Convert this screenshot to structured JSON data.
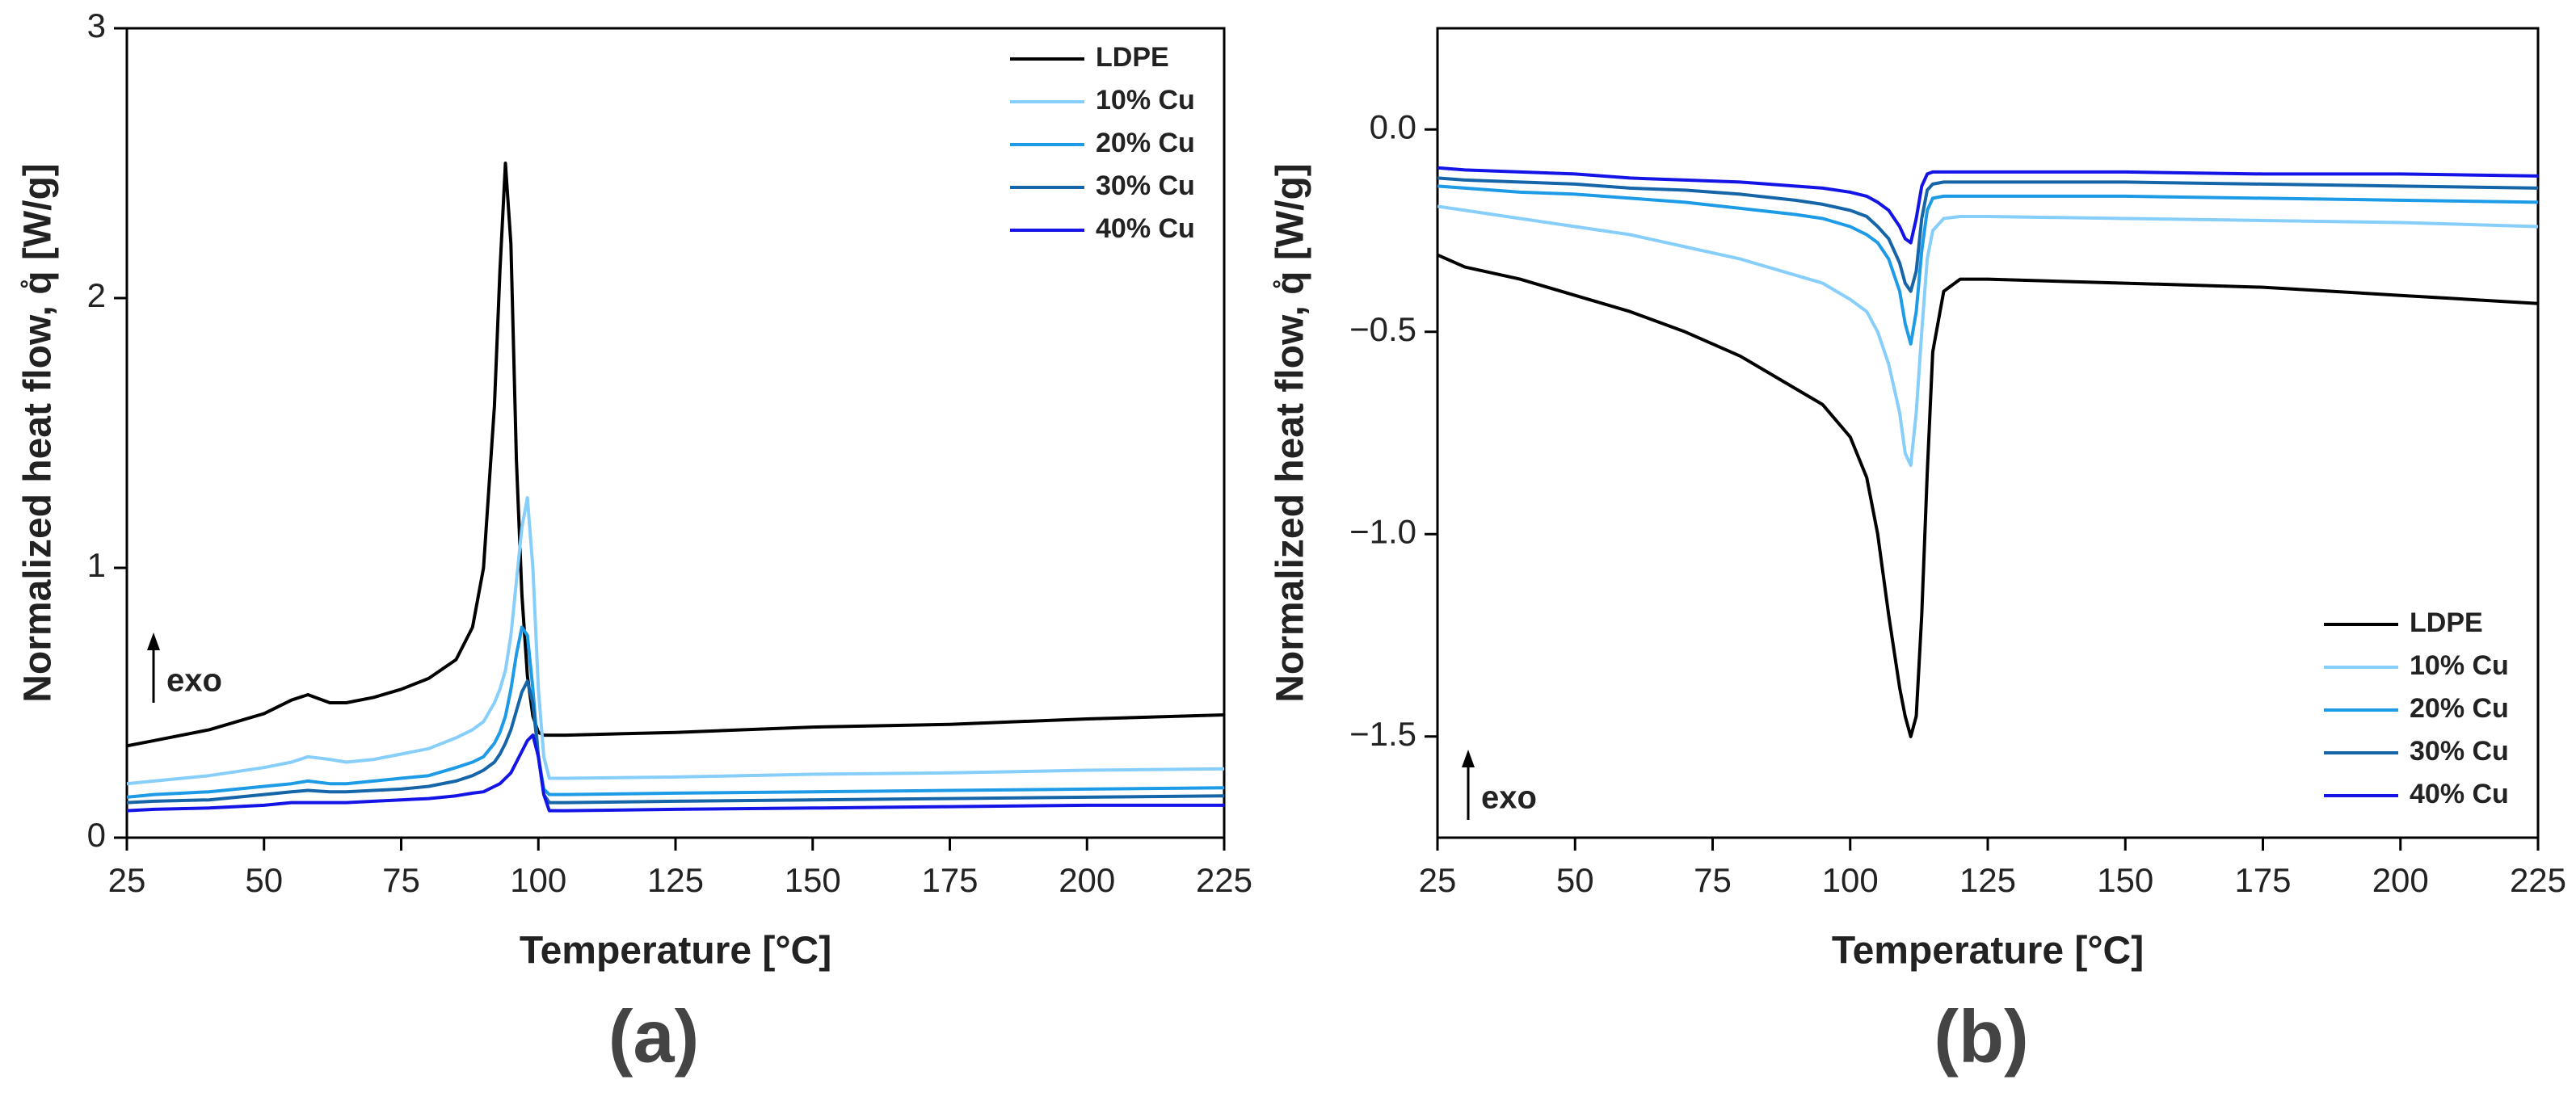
{
  "chart_data": [
    {
      "type": "line",
      "panel_label": "(a)",
      "x_label": "Temperature [°C]",
      "y_label": "Normalized heat flow, q̊ [W/g]",
      "annotation": "exo",
      "legend": "upper right",
      "xlim": [
        25,
        225
      ],
      "ylim": [
        0,
        3
      ],
      "xticks": [
        25,
        50,
        75,
        100,
        125,
        150,
        175,
        200,
        225
      ],
      "yticks": [
        0,
        1,
        2,
        3
      ],
      "x": [
        25,
        30,
        40,
        50,
        55,
        58,
        62,
        65,
        70,
        75,
        80,
        85,
        88,
        90,
        92,
        93,
        94,
        95,
        96,
        97,
        98,
        99,
        100,
        101,
        102,
        105,
        125,
        150,
        175,
        200,
        225
      ],
      "series": [
        {
          "name": "LDPE",
          "color": "#000000",
          "values": [
            0.34,
            0.36,
            0.4,
            0.46,
            0.51,
            0.53,
            0.5,
            0.5,
            0.52,
            0.55,
            0.59,
            0.66,
            0.78,
            1.0,
            1.6,
            2.1,
            2.5,
            2.2,
            1.4,
            0.9,
            0.6,
            0.45,
            0.39,
            0.38,
            0.38,
            0.38,
            0.39,
            0.41,
            0.42,
            0.44,
            0.455
          ]
        },
        {
          "name": "10% Cu",
          "color": "#87cefa",
          "values": [
            0.2,
            0.21,
            0.23,
            0.26,
            0.28,
            0.3,
            0.29,
            0.28,
            0.29,
            0.31,
            0.33,
            0.37,
            0.4,
            0.43,
            0.5,
            0.55,
            0.62,
            0.75,
            0.95,
            1.15,
            1.26,
            1.0,
            0.55,
            0.3,
            0.22,
            0.22,
            0.225,
            0.235,
            0.24,
            0.25,
            0.255
          ]
        },
        {
          "name": "20% Cu",
          "color": "#1e9be6",
          "values": [
            0.15,
            0.16,
            0.17,
            0.19,
            0.2,
            0.21,
            0.2,
            0.2,
            0.21,
            0.22,
            0.23,
            0.26,
            0.28,
            0.3,
            0.35,
            0.39,
            0.45,
            0.55,
            0.68,
            0.78,
            0.75,
            0.55,
            0.3,
            0.18,
            0.16,
            0.16,
            0.165,
            0.17,
            0.175,
            0.18,
            0.185
          ]
        },
        {
          "name": "30% Cu",
          "color": "#1565a8",
          "values": [
            0.13,
            0.135,
            0.14,
            0.16,
            0.17,
            0.175,
            0.17,
            0.17,
            0.175,
            0.18,
            0.19,
            0.21,
            0.23,
            0.25,
            0.28,
            0.31,
            0.35,
            0.4,
            0.47,
            0.54,
            0.58,
            0.5,
            0.3,
            0.16,
            0.13,
            0.13,
            0.135,
            0.14,
            0.145,
            0.15,
            0.155
          ]
        },
        {
          "name": "40% Cu",
          "color": "#1414e6",
          "values": [
            0.1,
            0.105,
            0.11,
            0.12,
            0.13,
            0.13,
            0.13,
            0.13,
            0.135,
            0.14,
            0.145,
            0.155,
            0.165,
            0.17,
            0.19,
            0.2,
            0.22,
            0.24,
            0.28,
            0.32,
            0.36,
            0.38,
            0.3,
            0.16,
            0.1,
            0.1,
            0.105,
            0.11,
            0.115,
            0.12,
            0.12
          ]
        }
      ]
    },
    {
      "type": "line",
      "panel_label": "(b)",
      "x_label": "Temperature [°C]",
      "y_label": "Normalized heat flow, q̊ [W/g]",
      "annotation": "exo",
      "legend": "lower right",
      "xlim": [
        25,
        225
      ],
      "ylim": [
        -1.75,
        0.25
      ],
      "xticks": [
        25,
        50,
        75,
        100,
        125,
        150,
        175,
        200,
        225
      ],
      "yticks": [
        {
          "value": 0,
          "label": "0.0"
        },
        {
          "value": -0.5,
          "label": "−0.5"
        },
        {
          "value": -1,
          "label": "−1.0"
        },
        {
          "value": -1.5,
          "label": "−1.5"
        }
      ],
      "x": [
        25,
        30,
        40,
        50,
        60,
        70,
        80,
        90,
        95,
        100,
        103,
        105,
        107,
        109,
        110,
        111,
        112,
        113,
        114,
        115,
        117,
        120,
        125,
        150,
        175,
        200,
        225
      ],
      "series": [
        {
          "name": "LDPE",
          "color": "#000000",
          "values": [
            -0.31,
            -0.34,
            -0.37,
            -0.41,
            -0.45,
            -0.5,
            -0.56,
            -0.64,
            -0.68,
            -0.76,
            -0.86,
            -1.0,
            -1.2,
            -1.38,
            -1.45,
            -1.5,
            -1.45,
            -1.2,
            -0.85,
            -0.55,
            -0.4,
            -0.37,
            -0.37,
            -0.38,
            -0.39,
            -0.41,
            -0.43
          ]
        },
        {
          "name": "10% Cu",
          "color": "#87cefa",
          "values": [
            -0.19,
            -0.2,
            -0.22,
            -0.24,
            -0.26,
            -0.29,
            -0.32,
            -0.36,
            -0.38,
            -0.42,
            -0.45,
            -0.5,
            -0.58,
            -0.7,
            -0.8,
            -0.83,
            -0.7,
            -0.5,
            -0.32,
            -0.25,
            -0.22,
            -0.215,
            -0.215,
            -0.22,
            -0.225,
            -0.23,
            -0.24
          ]
        },
        {
          "name": "20% Cu",
          "color": "#1e9be6",
          "values": [
            -0.14,
            -0.145,
            -0.155,
            -0.16,
            -0.17,
            -0.18,
            -0.195,
            -0.21,
            -0.22,
            -0.24,
            -0.26,
            -0.28,
            -0.32,
            -0.4,
            -0.48,
            -0.53,
            -0.45,
            -0.3,
            -0.2,
            -0.17,
            -0.165,
            -0.165,
            -0.165,
            -0.165,
            -0.17,
            -0.175,
            -0.18
          ]
        },
        {
          "name": "30% Cu",
          "color": "#1565a8",
          "values": [
            -0.12,
            -0.125,
            -0.13,
            -0.135,
            -0.145,
            -0.15,
            -0.16,
            -0.175,
            -0.185,
            -0.2,
            -0.215,
            -0.24,
            -0.27,
            -0.33,
            -0.38,
            -0.4,
            -0.35,
            -0.22,
            -0.15,
            -0.135,
            -0.13,
            -0.13,
            -0.13,
            -0.13,
            -0.135,
            -0.14,
            -0.145
          ]
        },
        {
          "name": "40% Cu",
          "color": "#1414e6",
          "values": [
            -0.095,
            -0.1,
            -0.105,
            -0.11,
            -0.12,
            -0.125,
            -0.13,
            -0.14,
            -0.145,
            -0.155,
            -0.165,
            -0.18,
            -0.2,
            -0.24,
            -0.27,
            -0.28,
            -0.22,
            -0.14,
            -0.11,
            -0.105,
            -0.105,
            -0.105,
            -0.105,
            -0.105,
            -0.11,
            -0.11,
            -0.115
          ]
        }
      ]
    }
  ]
}
